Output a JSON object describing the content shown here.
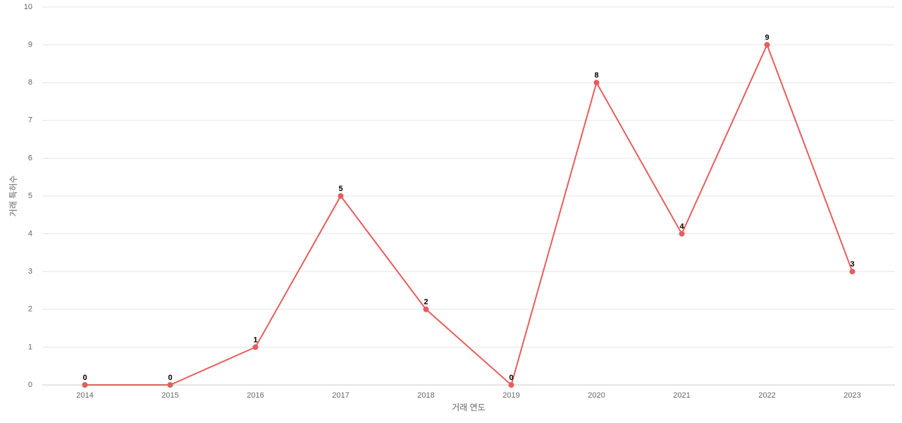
{
  "chart_data": {
    "type": "line",
    "x_label": "거래 연도",
    "y_label": "거래 특허수",
    "categories": [
      "2014",
      "2015",
      "2016",
      "2017",
      "2018",
      "2019",
      "2020",
      "2021",
      "2022",
      "2023"
    ],
    "values": [
      0,
      0,
      1,
      5,
      2,
      0,
      8,
      4,
      9,
      3
    ],
    "color": "#e85c5c",
    "ylim": [
      0,
      10
    ],
    "yticks": [
      0,
      1,
      2,
      3,
      4,
      5,
      6,
      7,
      8,
      9,
      10
    ],
    "grid": true
  }
}
